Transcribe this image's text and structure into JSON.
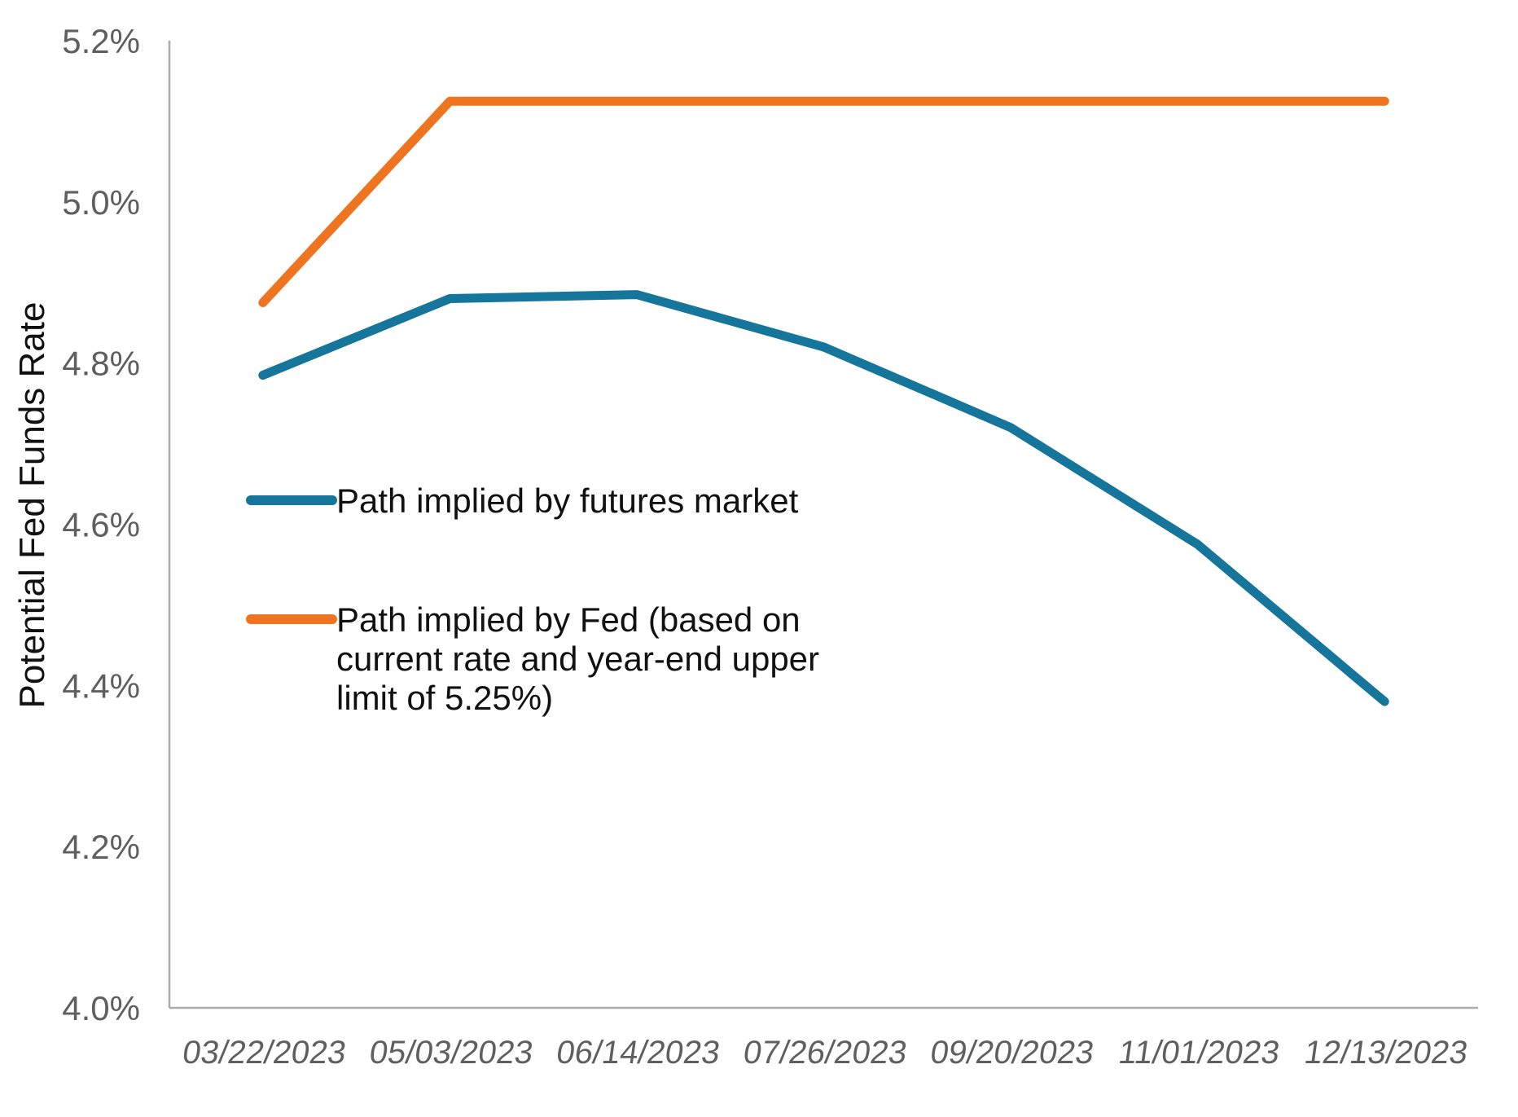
{
  "chart_data": {
    "type": "line",
    "title": "",
    "categories": [
      "03/22/2023",
      "05/03/2023",
      "06/14/2023",
      "07/26/2023",
      "09/20/2023",
      "11/01/2023",
      "12/13/2023"
    ],
    "series": [
      {
        "name": "Path implied by futures market",
        "color": "#16759B",
        "values": [
          4.785,
          4.88,
          4.885,
          4.82,
          4.72,
          4.575,
          4.38
        ]
      },
      {
        "name": "Path implied by Fed (based on current rate and year-end upper limit of 5.25%)",
        "color": "#EE7420",
        "values": [
          4.875,
          5.125,
          5.125,
          5.125,
          5.125,
          5.125,
          5.125
        ]
      }
    ],
    "xlabel": "",
    "ylabel": "Potential Fed Funds Rate",
    "ylim": [
      4.0,
      5.2
    ],
    "ytick_step": 0.2,
    "ytick_labels": [
      "4.0%",
      "4.2%",
      "4.4%",
      "4.6%",
      "4.8%",
      "5.0%",
      "5.2%"
    ],
    "grid": false,
    "legend_position": "inside-left"
  },
  "legend": {
    "items": [
      {
        "lines": [
          "Path implied by futures market"
        ]
      },
      {
        "lines": [
          "Path implied by Fed (based on",
          "current rate and year-end upper",
          "limit of 5.25%)"
        ]
      }
    ]
  },
  "colors": {
    "axis_line": "#ABABAB",
    "tick_label": "#5F5F5F",
    "text": "#111111",
    "background": "#FFFFFF"
  }
}
